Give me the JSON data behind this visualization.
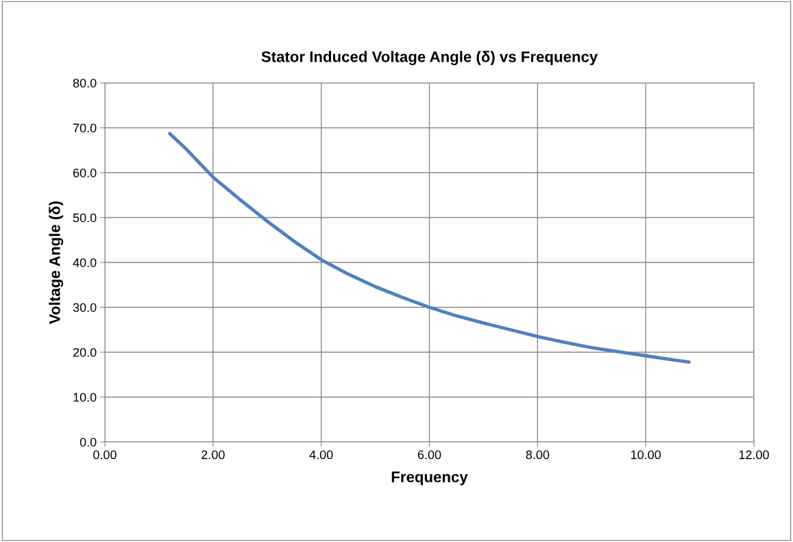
{
  "chart_data": {
    "type": "line",
    "title": "Stator Induced Voltage Angle (δ) vs Frequency",
    "xlabel": "Frequency",
    "ylabel": "Voltage Angle (δ)",
    "x": [
      1.2,
      1.5,
      2.0,
      2.5,
      3.0,
      3.5,
      4.0,
      4.5,
      5.0,
      5.5,
      6.0,
      6.5,
      7.0,
      7.5,
      8.0,
      8.5,
      9.0,
      9.5,
      10.0,
      10.5,
      10.8
    ],
    "series": [
      {
        "color": "#4f81bd",
        "values": [
          68.7,
          65.3,
          59.0,
          54.0,
          49.2,
          44.7,
          40.6,
          37.4,
          34.6,
          32.2,
          30.0,
          28.1,
          26.5,
          25.0,
          23.5,
          22.2,
          21.0,
          20.1,
          19.2,
          18.3,
          17.8
        ]
      }
    ],
    "xlim": [
      0,
      12
    ],
    "xticks": [
      {
        "value": 0,
        "label": "0.00"
      },
      {
        "value": 2,
        "label": "2.00"
      },
      {
        "value": 4,
        "label": "4.00"
      },
      {
        "value": 6,
        "label": "6.00"
      },
      {
        "value": 8,
        "label": "8.00"
      },
      {
        "value": 10,
        "label": "10.00"
      },
      {
        "value": 12,
        "label": "12.00"
      }
    ],
    "ylim": [
      0,
      80
    ],
    "yticks": [
      {
        "value": 0,
        "label": "0.0"
      },
      {
        "value": 10,
        "label": "10.0"
      },
      {
        "value": 20,
        "label": "20.0"
      },
      {
        "value": 30,
        "label": "30.0"
      },
      {
        "value": 40,
        "label": "40.0"
      },
      {
        "value": 50,
        "label": "50.0"
      },
      {
        "value": 60,
        "label": "60.0"
      },
      {
        "value": 70,
        "label": "70.0"
      },
      {
        "value": 80,
        "label": "80.0"
      }
    ],
    "grid": true,
    "marker": "none",
    "line_style": "solid"
  }
}
